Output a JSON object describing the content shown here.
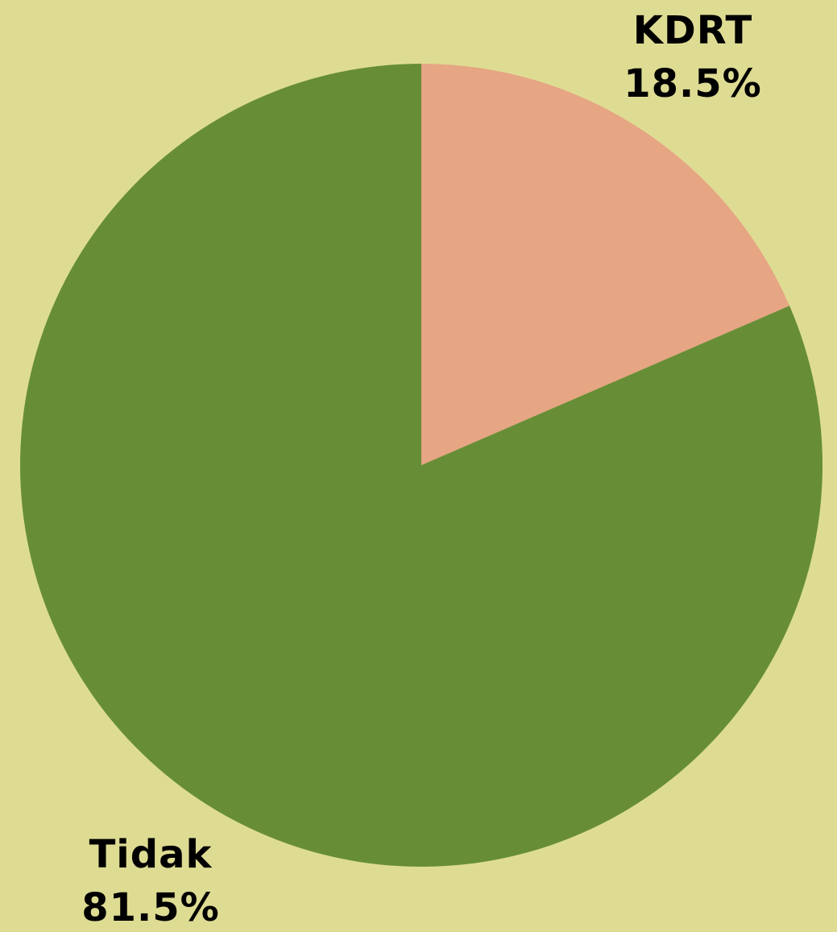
{
  "chart_data": {
    "type": "pie",
    "title": "",
    "background_color": "#dedc93",
    "slices": [
      {
        "label": "KDRT",
        "value": 18.5,
        "value_label": "18.5%",
        "color": "#e6a583"
      },
      {
        "label": "Tidak",
        "value": 81.5,
        "value_label": "81.5%",
        "color": "#678e37"
      }
    ]
  }
}
